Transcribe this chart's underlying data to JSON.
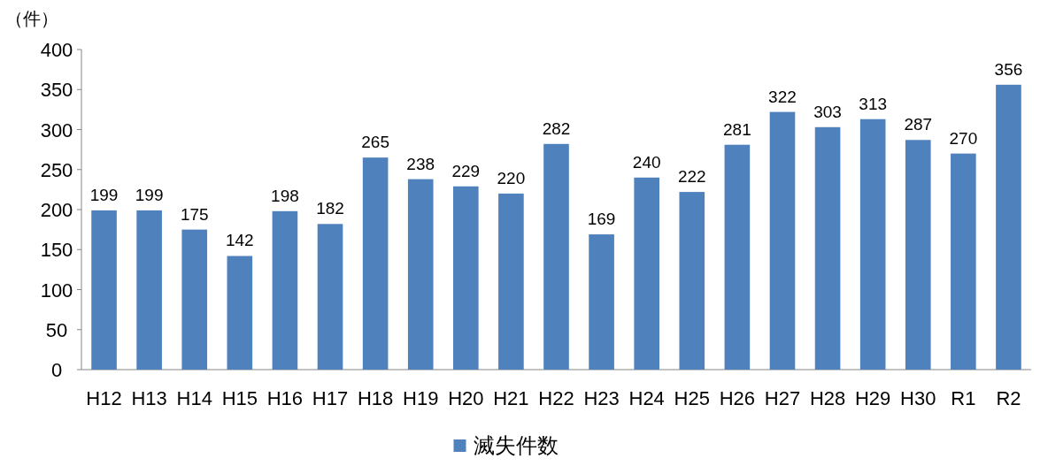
{
  "chart_data": {
    "type": "bar",
    "ylabel": "（件）",
    "categories": [
      "H12",
      "H13",
      "H14",
      "H15",
      "H16",
      "H17",
      "H18",
      "H19",
      "H20",
      "H21",
      "H22",
      "H23",
      "H24",
      "H25",
      "H26",
      "H27",
      "H28",
      "H29",
      "H30",
      "R1",
      "R2"
    ],
    "series": [
      {
        "name": "滅失件数",
        "color": "#4f81bd",
        "values": [
          199,
          199,
          175,
          142,
          198,
          182,
          265,
          238,
          229,
          220,
          282,
          169,
          240,
          222,
          281,
          322,
          303,
          313,
          287,
          270,
          356
        ]
      }
    ],
    "ylim": [
      0,
      400
    ],
    "yticks": [
      0,
      50,
      100,
      150,
      200,
      250,
      300,
      350,
      400
    ],
    "data_labels": true,
    "legend": "bottom"
  }
}
